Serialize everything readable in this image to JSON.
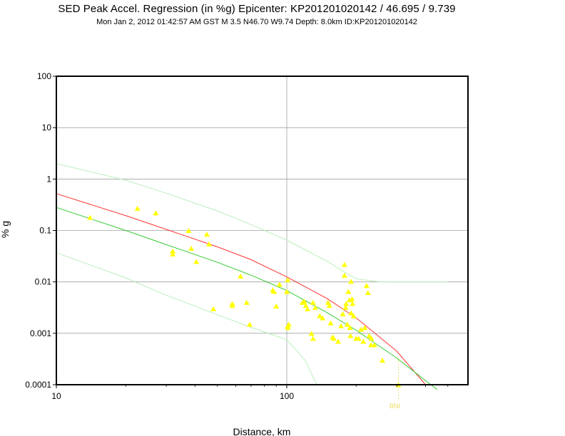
{
  "header": {
    "title": "SED Peak Accel. Regression (in %g) Epicenter: KP201201020142 / 46.695 / 9.739",
    "subtitle": "Mon Jan  2, 2012 01:42:57 AM GST    M 3.5    N46.70 W9.74   Depth: 8.0km   ID:KP201201020142"
  },
  "colors": {
    "frame": "#000000",
    "grid": "#a0a0a0",
    "points": "#ffff00",
    "regression_upper": "#ff3333",
    "regression_median": "#33cc33",
    "confidence_band": "#bbeebb",
    "station_label": "#e8e060"
  },
  "chart_data": {
    "type": "scatter",
    "title": "SED Peak Accel. Regression (in %g) Epicenter: KP201201020142 / 46.695 / 9.739",
    "xlabel": "Distance, km",
    "ylabel": "% g",
    "x_scale": "log",
    "y_scale": "log",
    "xlim": [
      10,
      500
    ],
    "ylim": [
      0.0001,
      100
    ],
    "grid": true,
    "xticks": [
      "10",
      "100"
    ],
    "yticks": [
      "100",
      "10",
      "1",
      "0.1",
      "0.01",
      "0.001",
      "0.0001"
    ],
    "annotations": [
      {
        "text": "BNI",
        "x": 305,
        "y": 0.0001
      }
    ],
    "series": [
      {
        "marker": "triangle",
        "x": [
          14,
          22.5,
          27,
          32,
          32,
          37.5,
          38.5,
          40.5,
          45,
          46,
          48,
          58,
          58,
          63,
          67,
          69,
          87,
          88,
          90,
          93,
          100,
          101,
          101,
          101,
          102,
          117,
          119,
          121,
          123,
          128,
          130,
          130,
          133,
          139,
          143,
          151,
          153,
          155,
          158,
          160,
          167,
          172,
          175,
          178,
          178,
          180,
          181,
          183,
          185,
          187,
          188,
          189,
          190,
          190,
          192,
          193,
          195,
          200,
          205,
          210,
          215,
          218,
          222,
          225,
          228,
          232,
          233,
          240,
          260,
          305
        ],
        "y": [
          0.18,
          0.27,
          0.22,
          0.04,
          0.035,
          0.1,
          0.045,
          0.025,
          0.085,
          0.055,
          0.003,
          0.0038,
          0.0035,
          0.013,
          0.004,
          0.0015,
          0.007,
          0.0065,
          0.0034,
          0.009,
          0.0065,
          0.011,
          0.0014,
          0.0013,
          0.0015,
          0.004,
          0.0042,
          0.0035,
          0.003,
          0.001,
          0.0008,
          0.004,
          0.0032,
          0.0022,
          0.002,
          0.004,
          0.0035,
          0.0016,
          0.00085,
          0.0008,
          0.0007,
          0.0014,
          0.0024,
          0.022,
          0.0135,
          0.0032,
          0.0038,
          0.0015,
          0.0065,
          0.0045,
          0.0013,
          0.0009,
          0.0103,
          0.0025,
          0.0047,
          0.0038,
          0.0022,
          0.0008,
          0.0008,
          0.0012,
          0.0007,
          0.0013,
          0.0085,
          0.0062,
          0.0009,
          0.0006,
          0.0008,
          0.0006,
          0.0003,
          0.0001
        ]
      },
      {
        "curve": "upper",
        "x": [
          10,
          20,
          30,
          50,
          70,
          100,
          150,
          200,
          300,
          400
        ],
        "y": [
          0.52,
          0.195,
          0.105,
          0.048,
          0.027,
          0.0125,
          0.0047,
          0.002,
          0.00045,
          0.0001
        ]
      },
      {
        "curve": "median",
        "x": [
          10,
          20,
          30,
          50,
          70,
          100,
          150,
          200,
          300,
          400,
          450
        ],
        "y": [
          0.28,
          0.1,
          0.053,
          0.024,
          0.0135,
          0.0068,
          0.0025,
          0.00115,
          0.00033,
          0.00012,
          8e-05
        ]
      },
      {
        "curve": "band-upper",
        "x": [
          10,
          20,
          30,
          50,
          70,
          100,
          150,
          180,
          200,
          250,
          300,
          500
        ],
        "y": [
          2.0,
          0.95,
          0.53,
          0.24,
          0.13,
          0.065,
          0.025,
          0.015,
          0.0115,
          0.0101,
          0.01,
          0.01
        ]
      },
      {
        "curve": "band-lower",
        "x": [
          10,
          20,
          30,
          50,
          70,
          100,
          120,
          135
        ],
        "y": [
          0.037,
          0.012,
          0.0055,
          0.0023,
          0.0013,
          0.00075,
          0.0003,
          0.0001
        ]
      }
    ]
  }
}
